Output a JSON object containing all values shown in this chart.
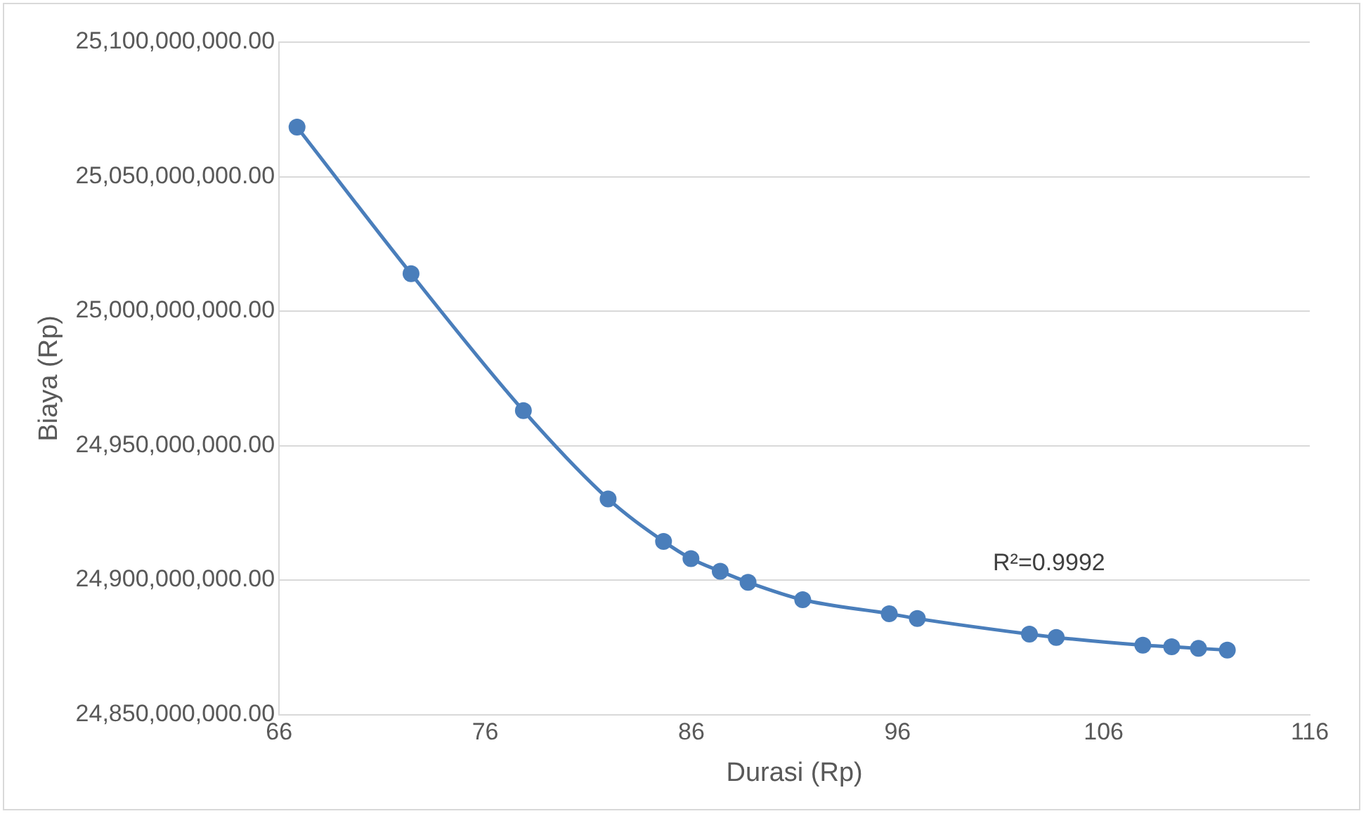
{
  "chart_data": {
    "type": "line",
    "xlabel": "Durasi (Rp)",
    "ylabel": "Biaya (Rp)",
    "x": [
      66.87,
      72.4,
      77.85,
      81.96,
      84.65,
      85.98,
      87.4,
      88.75,
      91.4,
      95.6,
      96.96,
      102.4,
      103.7,
      107.9,
      109.3,
      110.6,
      112.0
    ],
    "series": [
      {
        "color": "#4a7ebb",
        "values": [
          25068400000,
          25013900000,
          24963000000,
          24930200000,
          24914400000,
          24908000000,
          24903300000,
          24899200000,
          24892700000,
          24887500000,
          24885700000,
          24879900000,
          24878700000,
          24875800000,
          24875200000,
          24874600000,
          24874000000
        ]
      }
    ],
    "xlim": [
      66,
      116
    ],
    "xticks": [
      66,
      76,
      86,
      96,
      106,
      116
    ],
    "ylim": [
      24850000000,
      25100000000
    ],
    "yticks": [
      {
        "value": 24850000000,
        "label": "24,850,000,000.00"
      },
      {
        "value": 24900000000,
        "label": "24,900,000,000.00"
      },
      {
        "value": 24950000000,
        "label": "24,950,000,000.00"
      },
      {
        "value": 25000000000,
        "label": "25,000,000,000.00"
      },
      {
        "value": 25050000000,
        "label": "25,050,000,000.00"
      },
      {
        "value": 25100000000,
        "label": "25,100,000,000.00"
      }
    ],
    "annotations": [
      "R²=0.9992"
    ],
    "grid": "y",
    "legend": false,
    "marker": "circle",
    "line_style": "solid"
  }
}
